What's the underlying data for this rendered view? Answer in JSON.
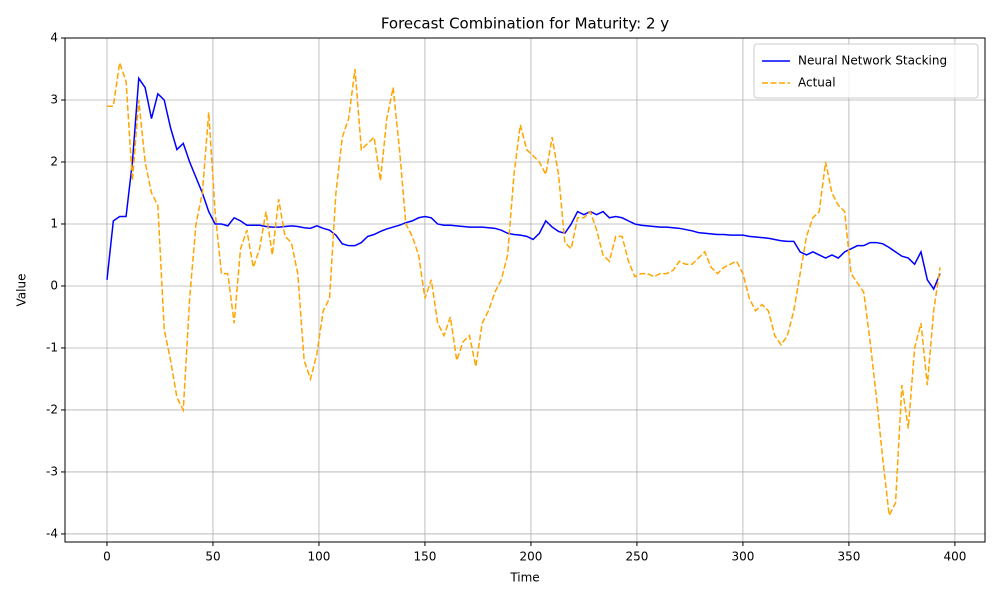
{
  "chart_data": {
    "type": "line",
    "title": "Forecast Combination for Maturity: 2 y",
    "xlabel": "Time",
    "ylabel": "Value",
    "x": [
      0,
      3,
      6,
      9,
      12,
      15,
      18,
      21,
      24,
      27,
      30,
      33,
      36,
      39,
      42,
      45,
      48,
      51,
      54,
      57,
      60,
      63,
      66,
      69,
      72,
      75,
      78,
      81,
      84,
      87,
      90,
      93,
      96,
      99,
      102,
      105,
      108,
      111,
      114,
      117,
      120,
      123,
      126,
      129,
      132,
      135,
      138,
      141,
      144,
      147,
      150,
      153,
      156,
      159,
      162,
      165,
      168,
      171,
      174,
      177,
      180,
      183,
      186,
      189,
      192,
      195,
      198,
      201,
      204,
      207,
      210,
      213,
      216,
      219,
      222,
      225,
      228,
      231,
      234,
      237,
      240,
      243,
      246,
      249,
      252,
      255,
      258,
      261,
      264,
      267,
      270,
      273,
      276,
      279,
      282,
      285,
      288,
      291,
      294,
      297,
      300,
      303,
      306,
      309,
      312,
      315,
      318,
      321,
      324,
      327,
      330,
      333,
      336,
      339,
      342,
      345,
      348,
      351,
      354,
      357,
      360,
      363,
      366,
      369,
      372,
      375,
      378,
      381,
      384,
      387,
      390,
      393
    ],
    "series": [
      {
        "name": "Neural Network Stacking",
        "color": "#0000ff",
        "dash": false,
        "values": [
          0.1,
          1.05,
          1.12,
          1.12,
          2.0,
          3.35,
          3.2,
          2.7,
          3.1,
          3.0,
          2.55,
          2.2,
          2.3,
          2.0,
          1.75,
          1.5,
          1.2,
          1.0,
          1.0,
          0.97,
          1.1,
          1.05,
          0.98,
          0.98,
          0.98,
          0.96,
          0.95,
          0.95,
          0.96,
          0.97,
          0.96,
          0.94,
          0.93,
          0.97,
          0.93,
          0.9,
          0.82,
          0.68,
          0.65,
          0.65,
          0.7,
          0.8,
          0.83,
          0.88,
          0.92,
          0.95,
          0.98,
          1.02,
          1.05,
          1.1,
          1.12,
          1.1,
          1.0,
          0.98,
          0.98,
          0.97,
          0.96,
          0.95,
          0.95,
          0.95,
          0.94,
          0.93,
          0.9,
          0.85,
          0.83,
          0.82,
          0.8,
          0.75,
          0.85,
          1.05,
          0.95,
          0.88,
          0.85,
          1.0,
          1.2,
          1.15,
          1.2,
          1.15,
          1.2,
          1.1,
          1.12,
          1.1,
          1.05,
          1.0,
          0.98,
          0.97,
          0.96,
          0.95,
          0.95,
          0.94,
          0.93,
          0.91,
          0.89,
          0.86,
          0.85,
          0.84,
          0.83,
          0.83,
          0.82,
          0.82,
          0.82,
          0.8,
          0.79,
          0.78,
          0.77,
          0.75,
          0.73,
          0.72,
          0.72,
          0.55,
          0.5,
          0.55,
          0.5,
          0.45,
          0.5,
          0.45,
          0.55,
          0.6,
          0.65,
          0.65,
          0.7,
          0.7,
          0.68,
          0.62,
          0.55,
          0.48,
          0.45,
          0.35,
          0.55,
          0.1,
          -0.05,
          0.2
        ]
      },
      {
        "name": "Actual",
        "color": "#ffa500",
        "dash": true,
        "values": [
          2.9,
          2.9,
          3.6,
          3.3,
          1.7,
          3.0,
          2.0,
          1.5,
          1.3,
          -0.7,
          -1.2,
          -1.8,
          -2.0,
          -0.2,
          1.0,
          1.5,
          2.8,
          1.2,
          0.2,
          0.2,
          -0.6,
          0.6,
          0.9,
          0.3,
          0.6,
          1.2,
          0.5,
          1.4,
          0.8,
          0.7,
          0.2,
          -1.2,
          -1.5,
          -1.1,
          -0.4,
          -0.2,
          1.5,
          2.4,
          2.7,
          3.5,
          2.2,
          2.3,
          2.4,
          1.7,
          2.7,
          3.2,
          2.2,
          1.0,
          0.8,
          0.5,
          -0.2,
          0.1,
          -0.6,
          -0.8,
          -0.5,
          -1.2,
          -0.9,
          -0.8,
          -1.3,
          -0.6,
          -0.4,
          -0.1,
          0.1,
          0.5,
          1.8,
          2.6,
          2.2,
          2.1,
          2.0,
          1.8,
          2.4,
          1.8,
          0.7,
          0.6,
          1.1,
          1.1,
          1.2,
          0.9,
          0.5,
          0.4,
          0.8,
          0.8,
          0.4,
          0.15,
          0.2,
          0.2,
          0.15,
          0.2,
          0.2,
          0.25,
          0.4,
          0.35,
          0.35,
          0.45,
          0.55,
          0.3,
          0.2,
          0.3,
          0.35,
          0.4,
          0.2,
          -0.2,
          -0.4,
          -0.3,
          -0.4,
          -0.8,
          -0.95,
          -0.8,
          -0.4,
          0.2,
          0.8,
          1.1,
          1.2,
          2.0,
          1.5,
          1.3,
          1.2,
          0.2,
          0.05,
          -0.1,
          -0.9,
          -1.8,
          -2.8,
          -3.7,
          -3.5,
          -1.6,
          -2.3,
          -1.0,
          -0.6,
          -1.6,
          -0.4,
          0.3
        ]
      }
    ],
    "xlim": [
      -19.8,
      414.2
    ],
    "ylim": [
      -4.13,
      4.0
    ],
    "xticks": [
      0,
      50,
      100,
      150,
      200,
      250,
      300,
      350,
      400
    ],
    "yticks": [
      -4,
      -3,
      -2,
      -1,
      0,
      1,
      2,
      3,
      4
    ],
    "grid": true,
    "legend": "upper right"
  }
}
